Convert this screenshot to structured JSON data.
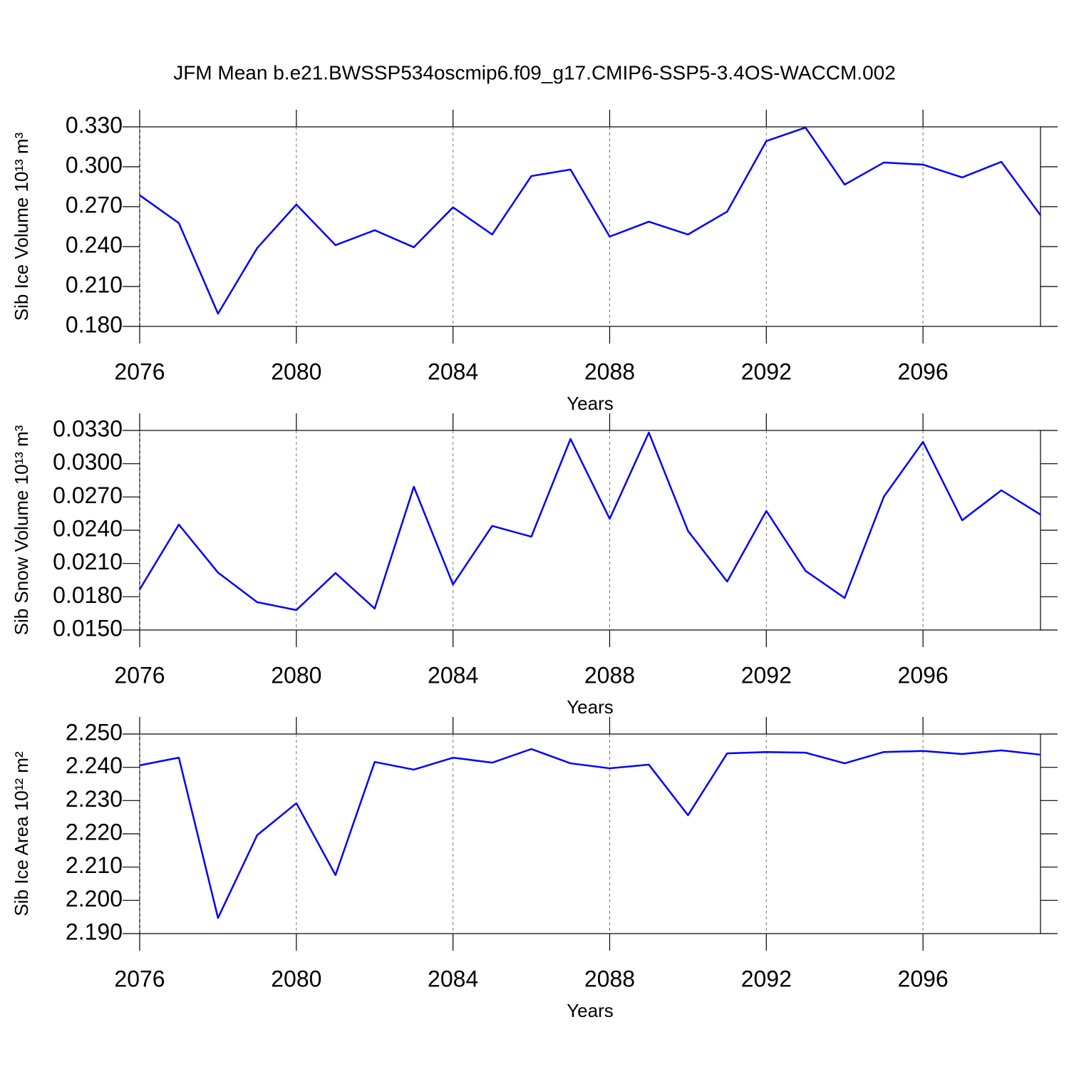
{
  "title": "JFM Mean b.e21.BWSSP534oscmip6.f09_g17.CMIP6-SSP5-3.4OS-WACCM.002",
  "chart_data": [
    {
      "type": "line",
      "y_label": "Sib Ice Volume 10¹³ m³",
      "x_label": "Years",
      "color": "#0000ff",
      "grid": true,
      "x": [
        2076,
        2077,
        2078,
        2079,
        2080,
        2081,
        2082,
        2083,
        2084,
        2085,
        2086,
        2087,
        2088,
        2089,
        2090,
        2091,
        2092,
        2093,
        2094,
        2095,
        2096,
        2097,
        2098,
        2099
      ],
      "values": [
        0.2786,
        0.2577,
        0.1896,
        0.2389,
        0.2716,
        0.2411,
        0.2523,
        0.2395,
        0.2695,
        0.2491,
        0.293,
        0.2979,
        0.2475,
        0.2587,
        0.2491,
        0.2663,
        0.3193,
        0.3295,
        0.2866,
        0.3032,
        0.3016,
        0.292,
        0.3037,
        0.2636
      ],
      "xlim": [
        2076,
        2099
      ],
      "xticks": [
        2076,
        2080,
        2084,
        2088,
        2092,
        2096
      ],
      "ylim": [
        0.18,
        0.33
      ],
      "yticks": [
        {
          "value": 0.18,
          "label": "0.180"
        },
        {
          "value": 0.21,
          "label": "0.210"
        },
        {
          "value": 0.24,
          "label": "0.240"
        },
        {
          "value": 0.27,
          "label": "0.270"
        },
        {
          "value": 0.3,
          "label": "0.300"
        },
        {
          "value": 0.33,
          "label": "0.330"
        }
      ]
    },
    {
      "type": "line",
      "y_label": "Sib Snow Volume 10¹³ m³",
      "x_label": "Years",
      "color": "#0000ff",
      "grid": true,
      "x": [
        2076,
        2077,
        2078,
        2079,
        2080,
        2081,
        2082,
        2083,
        2084,
        2085,
        2086,
        2087,
        2088,
        2089,
        2090,
        2091,
        2092,
        2093,
        2094,
        2095,
        2096,
        2097,
        2098,
        2099
      ],
      "values": [
        0.01866,
        0.02451,
        0.02018,
        0.01751,
        0.0168,
        0.02014,
        0.01693,
        0.02792,
        0.01911,
        0.02439,
        0.02342,
        0.03223,
        0.02503,
        0.03281,
        0.02394,
        0.01937,
        0.02574,
        0.02034,
        0.01789,
        0.02702,
        0.03197,
        0.0249,
        0.0276,
        0.02541
      ],
      "xlim": [
        2076,
        2099
      ],
      "xticks": [
        2076,
        2080,
        2084,
        2088,
        2092,
        2096
      ],
      "ylim": [
        0.015,
        0.033
      ],
      "yticks": [
        {
          "value": 0.015,
          "label": "0.0150"
        },
        {
          "value": 0.018,
          "label": "0.0180"
        },
        {
          "value": 0.021,
          "label": "0.0210"
        },
        {
          "value": 0.024,
          "label": "0.0240"
        },
        {
          "value": 0.027,
          "label": "0.0270"
        },
        {
          "value": 0.03,
          "label": "0.0300"
        },
        {
          "value": 0.033,
          "label": "0.0330"
        }
      ]
    },
    {
      "type": "line",
      "y_label": "Sib Ice Area 10¹² m²",
      "x_label": "Years",
      "color": "#0000ff",
      "grid": true,
      "x": [
        2076,
        2077,
        2078,
        2079,
        2080,
        2081,
        2082,
        2083,
        2084,
        2085,
        2086,
        2087,
        2088,
        2089,
        2090,
        2091,
        2092,
        2093,
        2094,
        2095,
        2096,
        2097,
        2098,
        2099
      ],
      "values": [
        2.2406,
        2.2429,
        2.1947,
        2.2196,
        2.2292,
        2.2076,
        2.2416,
        2.2393,
        2.2429,
        2.2414,
        2.2455,
        2.2412,
        2.2397,
        2.2408,
        2.2256,
        2.2442,
        2.2446,
        2.2444,
        2.2412,
        2.2446,
        2.2449,
        2.244,
        2.2451,
        2.2438
      ],
      "xlim": [
        2076,
        2099
      ],
      "xticks": [
        2076,
        2080,
        2084,
        2088,
        2092,
        2096
      ],
      "ylim": [
        2.19,
        2.25
      ],
      "yticks": [
        {
          "value": 2.19,
          "label": "2.190"
        },
        {
          "value": 2.2,
          "label": "2.200"
        },
        {
          "value": 2.21,
          "label": "2.210"
        },
        {
          "value": 2.22,
          "label": "2.220"
        },
        {
          "value": 2.23,
          "label": "2.230"
        },
        {
          "value": 2.24,
          "label": "2.240"
        },
        {
          "value": 2.25,
          "label": "2.250"
        }
      ]
    }
  ]
}
